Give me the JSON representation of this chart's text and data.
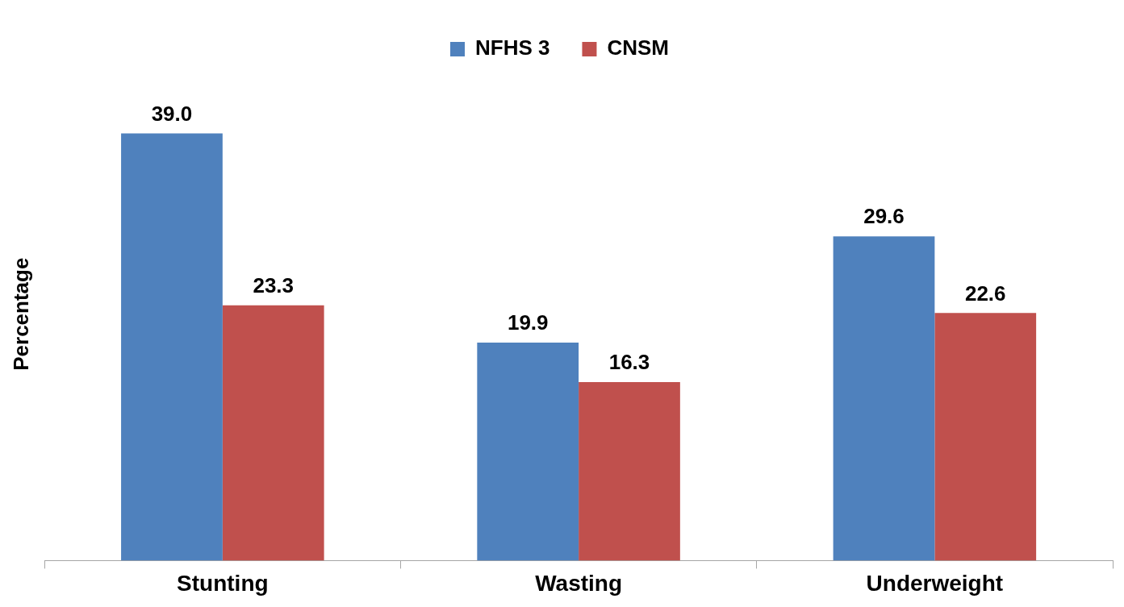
{
  "chart_data": {
    "type": "bar",
    "ylabel": "Percentage",
    "categories": [
      "Stunting",
      "Wasting",
      "Underweight"
    ],
    "series": [
      {
        "name": "NFHS 3",
        "color": "#4f81bd",
        "values": [
          39.0,
          19.9,
          29.6
        ],
        "value_labels": [
          "39.0",
          "19.9",
          "29.6"
        ]
      },
      {
        "name": "CNSM",
        "color": "#c0504d",
        "values": [
          23.3,
          16.3,
          22.6
        ],
        "value_labels": [
          "23.3",
          "16.3",
          "22.6"
        ]
      }
    ],
    "legend": "top",
    "grid": false
  }
}
